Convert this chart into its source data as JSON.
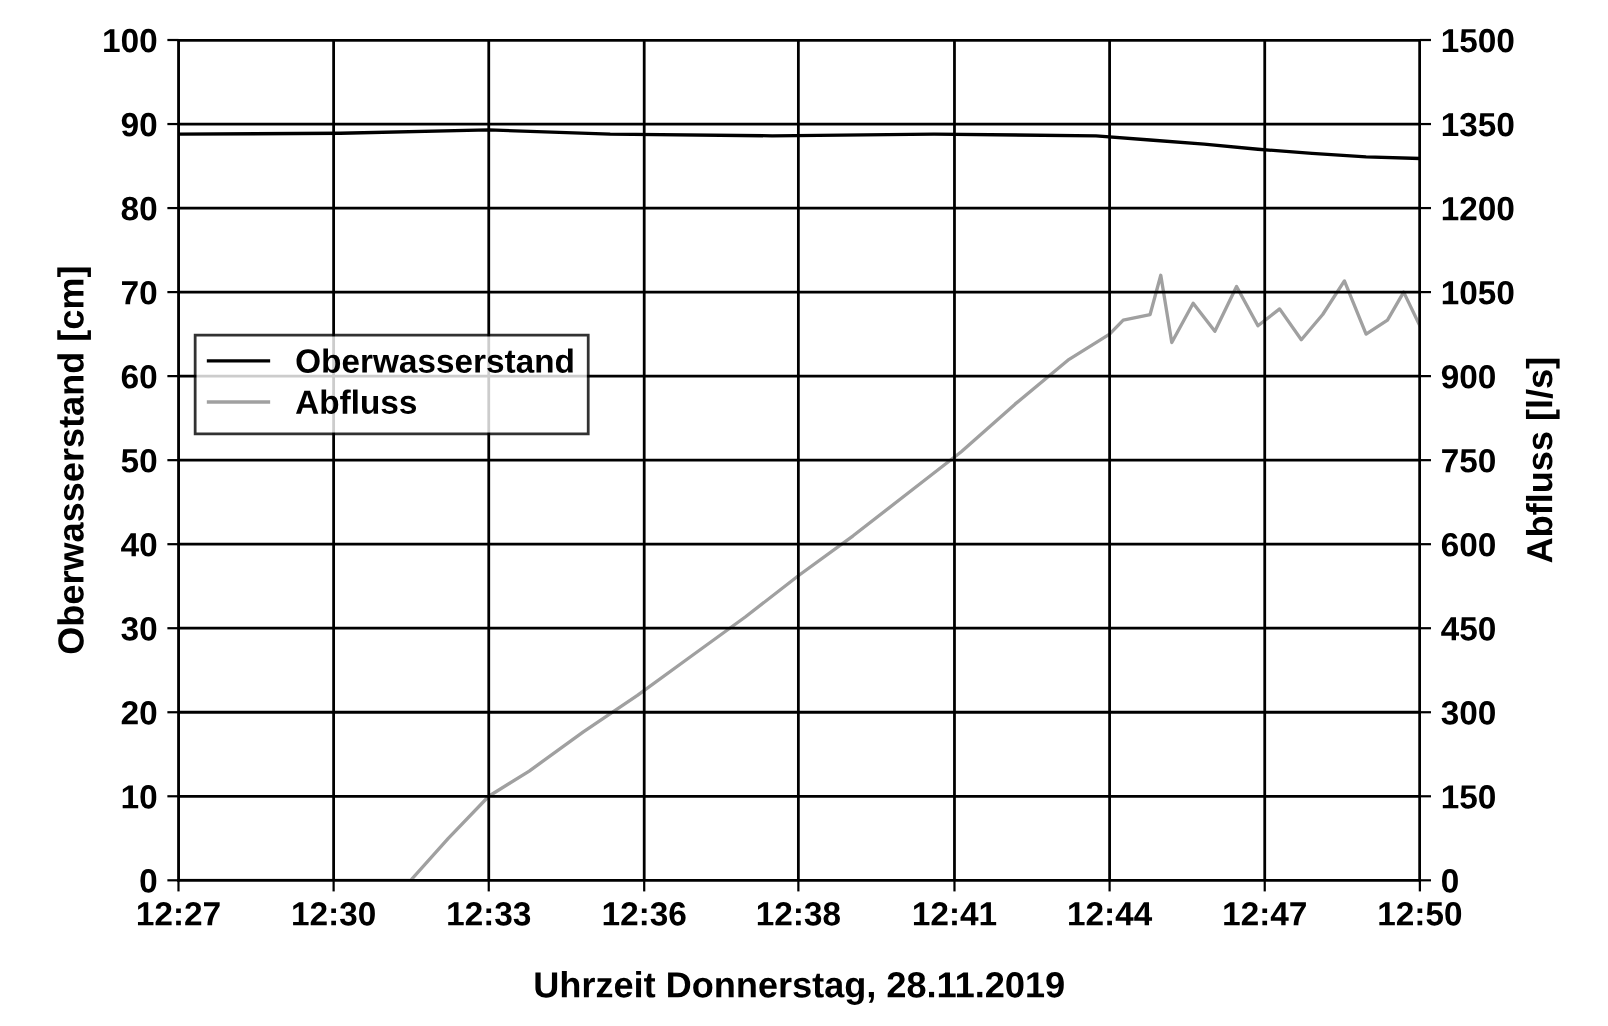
{
  "chart_data": {
    "type": "line",
    "xlabel": "Uhrzeit Donnerstag, 28.11.2019",
    "ylabel": "Oberwasserstand [cm]",
    "y2label": "Abfluss [l/s]",
    "xlim": [
      12.45,
      12.8333
    ],
    "xticks": [
      {
        "value": 12.45,
        "label": "12:27"
      },
      {
        "value": 12.4979,
        "label": "12:30"
      },
      {
        "value": 12.5458,
        "label": "12:33"
      },
      {
        "value": 12.5938,
        "label": "12:36"
      },
      {
        "value": 12.6414,
        "label": "12:38"
      },
      {
        "value": 12.6896,
        "label": "12:41"
      },
      {
        "value": 12.7375,
        "label": "12:44"
      },
      {
        "value": 12.7854,
        "label": "12:47"
      },
      {
        "value": 12.8333,
        "label": "12:50"
      }
    ],
    "ylim": [
      0,
      100
    ],
    "yticks": [
      0,
      10,
      20,
      30,
      40,
      50,
      60,
      70,
      80,
      90,
      100
    ],
    "y2lim": [
      0,
      1500
    ],
    "y2ticks": [
      0,
      150,
      300,
      450,
      600,
      750,
      900,
      1050,
      1200,
      1350,
      1500
    ],
    "grid": true,
    "legend": "left",
    "marker": "none",
    "line_style": "solid",
    "series": [
      {
        "name": "Oberwasserstand",
        "color": "#000000",
        "x": [
          12.45,
          12.5,
          12.5458,
          12.5833,
          12.6333,
          12.6833,
          12.7333,
          12.75,
          12.7667,
          12.7833,
          12.8,
          12.8167,
          12.8333
        ],
        "values": [
          88.8,
          88.9,
          89.3,
          88.8,
          88.6,
          88.8,
          88.6,
          88.1,
          87.6,
          87.0,
          86.5,
          86.1,
          85.9
        ]
      },
      {
        "name": "Abfluss",
        "color": "#a0a0a0",
        "axis": "y2",
        "x": [
          12.45,
          12.5,
          12.5217,
          12.5333,
          12.5458,
          12.5583,
          12.575,
          12.5917,
          12.6083,
          12.625,
          12.6417,
          12.6583,
          12.675,
          12.6917,
          12.7083,
          12.725,
          12.7375,
          12.7417,
          12.75,
          12.7533,
          12.7567,
          12.7633,
          12.77,
          12.7767,
          12.7833,
          12.79,
          12.7967,
          12.8033,
          12.81,
          12.8167,
          12.8233,
          12.8283,
          12.8333
        ],
        "values": [
          0,
          0,
          0,
          75,
          150,
          195,
          265,
          330,
          400,
          470,
          545,
          615,
          690,
          765,
          850,
          930,
          975,
          1000,
          1010,
          1080,
          960,
          1030,
          980,
          1060,
          990,
          1020,
          965,
          1010,
          1070,
          975,
          1000,
          1050,
          990
        ]
      }
    ]
  }
}
